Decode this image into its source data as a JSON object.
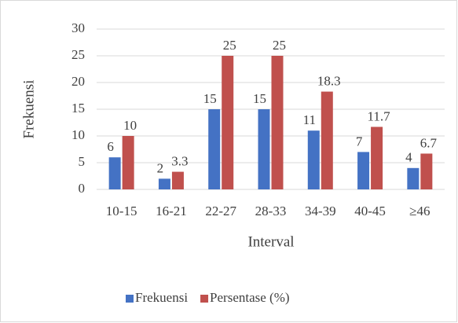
{
  "chart_data": {
    "type": "bar",
    "categories": [
      "10-15",
      "16-21",
      "22-27",
      "28-33",
      "34-39",
      "40-45",
      "≥46"
    ],
    "series": [
      {
        "name": "Frekuensi",
        "color": "#4472c4",
        "values": [
          6,
          2,
          15,
          15,
          11,
          7,
          4
        ]
      },
      {
        "name": "Persentase (%)",
        "color": "#c0504d",
        "values": [
          10,
          3.3,
          25,
          25,
          18.3,
          11.7,
          6.7
        ]
      }
    ],
    "y_label": "Frekuensi",
    "x_label": "Interval",
    "ylim": [
      0,
      30
    ],
    "yticks": [
      0,
      5,
      10,
      15,
      20,
      25,
      30
    ],
    "grid": true,
    "legend": "bottom"
  }
}
